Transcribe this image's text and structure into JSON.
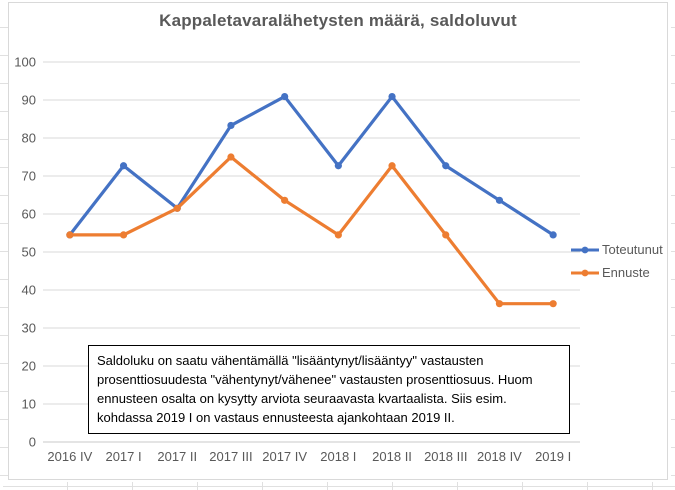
{
  "chart_data": {
    "type": "line",
    "title": "Kappaletavaralähetysten määrä, saldoluvut",
    "categories": [
      "2016 IV",
      "2017 I",
      "2017 II",
      "2017 III",
      "2017 IV",
      "2018 I",
      "2018 II",
      "2018 III",
      "2018 IV",
      "2019 I"
    ],
    "series": [
      {
        "name": "Toteutunut",
        "color": "#4472C4",
        "values": [
          54.5,
          72.7,
          61.5,
          83.3,
          90.9,
          72.7,
          90.9,
          72.7,
          63.6,
          54.5
        ]
      },
      {
        "name": "Ennuste",
        "color": "#ED7D31",
        "values": [
          54.5,
          54.5,
          61.5,
          75,
          63.6,
          54.5,
          72.7,
          54.5,
          36.4,
          36.4
        ]
      }
    ],
    "ylim": [
      0,
      100
    ],
    "yticks": [
      0,
      10,
      20,
      30,
      40,
      50,
      60,
      70,
      80,
      90,
      100
    ],
    "xlabel": "",
    "ylabel": "",
    "grid": true,
    "legend_position": "right"
  },
  "annotation": {
    "lines": [
      "Saldoluku on saatu vähentämällä \"lisääntynyt/lisääntyy\" vastausten",
      "prosenttiosuudesta \"vähentynyt/vähenee\" vastausten prosenttiosuus. Huom",
      "ennusteen osalta on kysytty arviota seuraavasta kvartaalista. Siis esim.",
      "kohdassa 2019 I on vastaus ennusteesta ajankohtaan 2019 II."
    ]
  },
  "colors": {
    "title_text": "#595959",
    "axis_text": "#595959",
    "gridline": "#d9d9d9",
    "axis_line": "#c8c8c8",
    "chart_border": "#d9d9d9",
    "worksheet_gridline": "#e0e0e0",
    "annotation_border": "#000000",
    "series_blue": "#4472C4",
    "series_orange": "#ED7D31"
  }
}
